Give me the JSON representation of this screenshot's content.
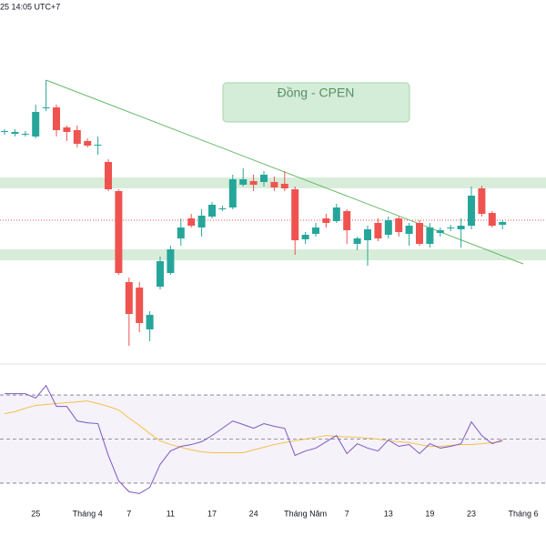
{
  "header": {
    "time": "25 14:05 UTC+7"
  },
  "chart_data": {
    "type": "candlestick",
    "label": "Đồng - CPEN",
    "categories": [
      null,
      null,
      null,
      "25",
      null,
      null,
      null,
      null,
      "Tháng 4",
      null,
      null,
      null,
      "7",
      null,
      null,
      null,
      "11",
      null,
      null,
      null,
      "17",
      null,
      null,
      null,
      "24",
      null,
      null,
      null,
      null,
      "Tháng Năm",
      null,
      null,
      null,
      "7",
      null,
      null,
      null,
      "13",
      null,
      null,
      null,
      "19",
      null,
      null,
      null,
      "23",
      null,
      null,
      null,
      null,
      "Tháng 6"
    ],
    "open": [
      255,
      253,
      253,
      250,
      282,
      282,
      260,
      257,
      245,
      240,
      222,
      190,
      90,
      84,
      38,
      85,
      100,
      138,
      160,
      150,
      162,
      170,
      172,
      197,
      201,
      200,
      200,
      198,
      192,
      137,
      143,
      160,
      157,
      168,
      132,
      136,
      155,
      142,
      160,
      143,
      155,
      132,
      144,
      150,
      148,
      152,
      193,
      166,
      153,
      null,
      null
    ],
    "high": [
      258,
      258,
      256,
      285,
      312,
      285,
      262,
      262,
      248,
      250,
      225,
      192,
      95,
      90,
      58,
      118,
      130,
      160,
      165,
      170,
      178,
      174,
      208,
      215,
      208,
      212,
      206,
      212,
      195,
      145,
      155,
      165,
      176,
      170,
      140,
      152,
      160,
      162,
      162,
      155,
      158,
      155,
      150,
      153,
      160,
      195,
      196,
      168,
      158,
      null,
      null
    ],
    "low": [
      252,
      250,
      250,
      248,
      278,
      250,
      245,
      238,
      238,
      230,
      190,
      98,
      20,
      35,
      25,
      82,
      98,
      130,
      150,
      140,
      160,
      168,
      170,
      195,
      190,
      195,
      190,
      190,
      120,
      132,
      140,
      150,
      155,
      132,
      125,
      108,
      135,
      138,
      140,
      130,
      130,
      128,
      140,
      146,
      128,
      148,
      162,
      150,
      148,
      null,
      null
    ],
    "close": [
      256,
      255,
      253,
      277,
      282,
      257,
      255,
      242,
      240,
      241,
      192,
      100,
      55,
      45,
      54,
      113,
      126,
      150,
      152,
      163,
      175,
      171,
      203,
      203,
      197,
      208,
      194,
      193,
      136,
      142,
      150,
      155,
      172,
      147,
      138,
      148,
      138,
      158,
      145,
      152,
      132,
      150,
      147,
      150,
      152,
      185,
      165,
      152,
      156,
      null,
      null
    ],
    "up_color": "#26a69a",
    "down_color": "#ef5350",
    "ylim": [
      0,
      400
    ],
    "zones": [
      [
        193,
        205
      ],
      [
        114,
        126
      ]
    ],
    "zone_color": "#4caf50",
    "price_line": 158,
    "price_line_color": "#ef5350",
    "trendline": {
      "x": [
        4,
        50
      ],
      "y": [
        312,
        110
      ],
      "color": "#66bb6a"
    },
    "rsi": {
      "values": [
        70.6,
        70.6,
        70.6,
        68.6,
        74.3,
        64.8,
        64.8,
        58.2,
        57.4,
        57.0,
        42.6,
        31.0,
        26.1,
        25.3,
        28.1,
        38.5,
        44.6,
        46.7,
        47.5,
        48.8,
        51.6,
        54.9,
        58.2,
        56.6,
        54.9,
        57.0,
        55.8,
        54.9,
        42.6,
        44.6,
        45.9,
        48.8,
        51.6,
        43.4,
        47.9,
        45.9,
        44.6,
        49.6,
        46.7,
        47.5,
        43.4,
        47.9,
        45.9,
        46.7,
        47.9,
        57.8,
        51.6,
        47.9,
        49.6,
        null,
        null
      ],
      "color": "#7e57c2",
      "ma": [
        61.5,
        62.4,
        64.0,
        65.3,
        65.7,
        66.1,
        66.5,
        66.9,
        67.3,
        66.1,
        64.8,
        63.2,
        59.5,
        56.2,
        52.5,
        49.2,
        47.5,
        46.3,
        45.1,
        44.2,
        43.8,
        43.8,
        43.8,
        43.8,
        45.1,
        46.3,
        47.5,
        48.4,
        49.2,
        50.0,
        50.8,
        51.6,
        51.2,
        51.0,
        50.8,
        50.4,
        50.0,
        49.2,
        48.8,
        48.4,
        47.5,
        46.7,
        46.7,
        47.1,
        47.5,
        47.5,
        47.9,
        48.4,
        48.8,
        null,
        null
      ],
      "ma_color": "#f5c04a",
      "ylim": [
        18,
        82
      ],
      "bands": [
        30,
        50,
        70
      ],
      "band_fill": "#7e57c2"
    }
  }
}
